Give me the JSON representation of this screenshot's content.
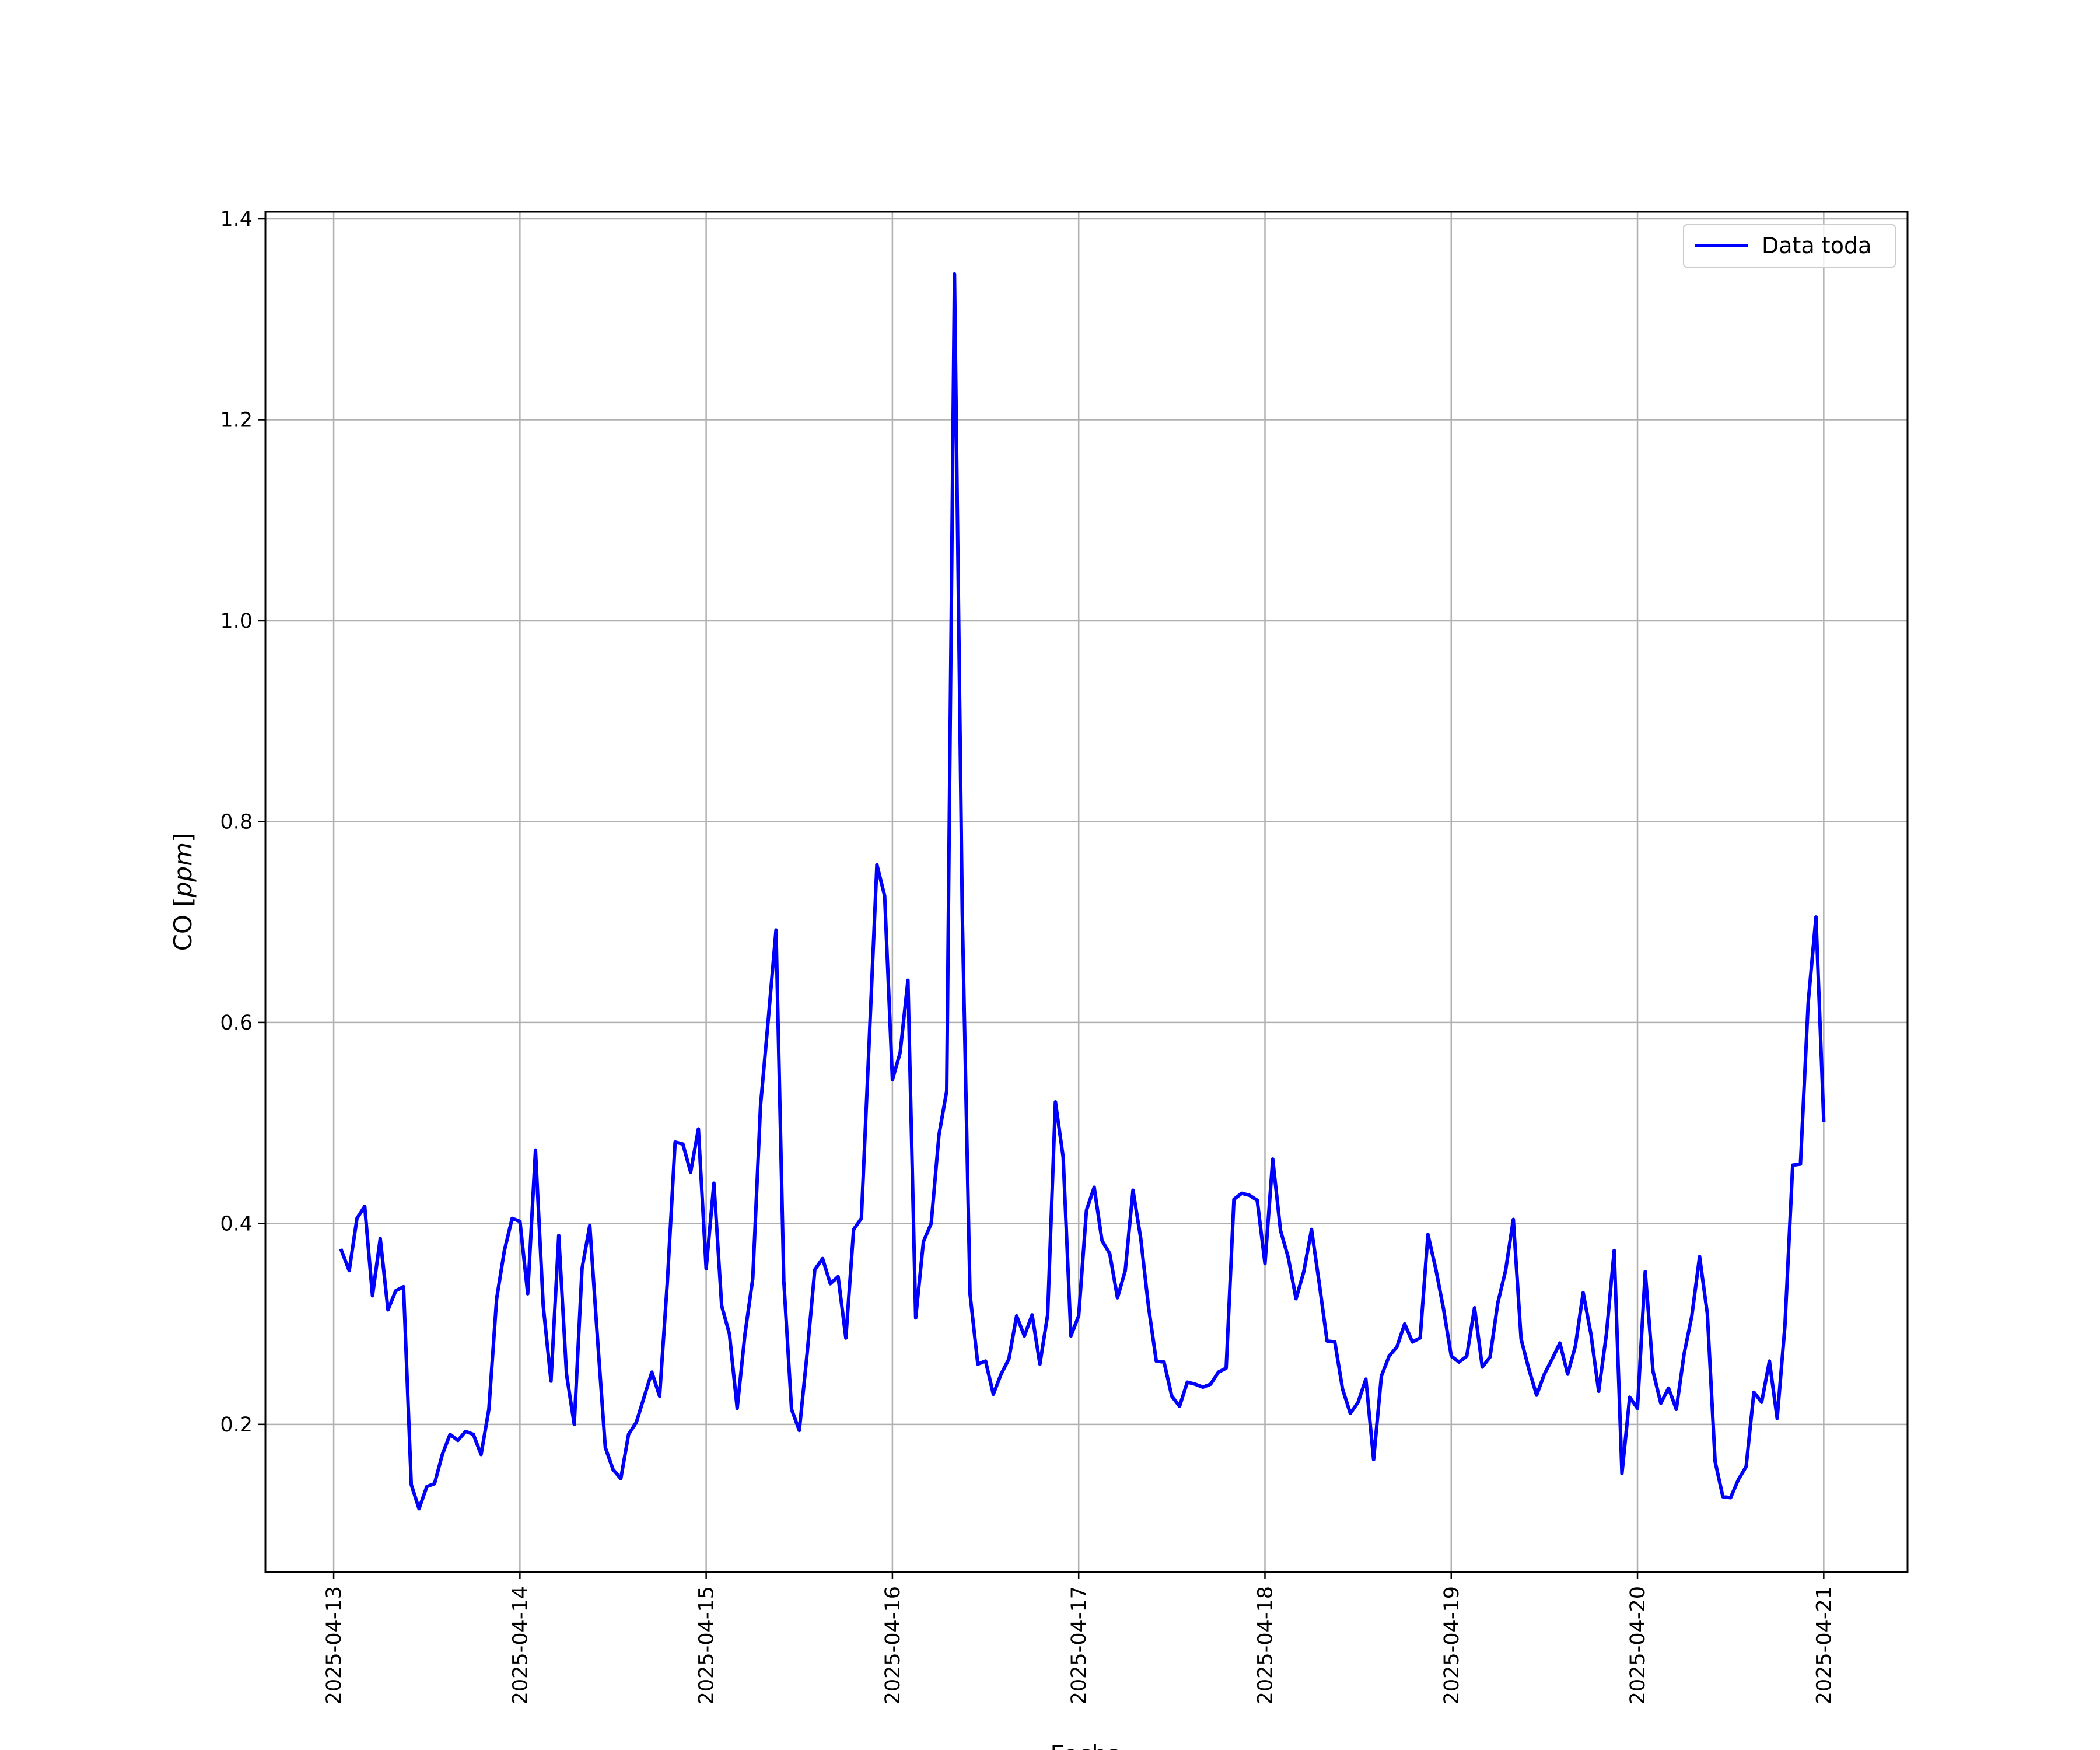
{
  "chart_data": {
    "type": "line",
    "title": "",
    "xlabel": "Fecha",
    "ylabel": "CO",
    "ylabel_unit": "ppm",
    "x_ticks": [
      "2025-04-13",
      "2025-04-14",
      "2025-04-15",
      "2025-04-16",
      "2025-04-17",
      "2025-04-18",
      "2025-04-19",
      "2025-04-20",
      "2025-04-21"
    ],
    "y_ticks": [
      "0.2",
      "0.4",
      "0.6",
      "0.8",
      "1.0",
      "1.2",
      "1.4"
    ],
    "xlim": [
      "2025-04-12T15:12",
      "2025-04-21T10:48"
    ],
    "ylim": [
      0.053,
      1.407
    ],
    "grid": true,
    "legend_position": "top-right",
    "line_color": "#0000ff",
    "series": [
      {
        "name": "Data toda",
        "color": "#0000ff",
        "x": [
          "2025-04-13T01:00",
          "2025-04-13T02:00",
          "2025-04-13T03:00",
          "2025-04-13T04:00",
          "2025-04-13T05:00",
          "2025-04-13T06:00",
          "2025-04-13T07:00",
          "2025-04-13T08:00",
          "2025-04-13T09:00",
          "2025-04-13T10:00",
          "2025-04-13T11:00",
          "2025-04-13T12:00",
          "2025-04-13T13:00",
          "2025-04-13T14:00",
          "2025-04-13T15:00",
          "2025-04-13T16:00",
          "2025-04-13T17:00",
          "2025-04-13T18:00",
          "2025-04-13T19:00",
          "2025-04-13T20:00",
          "2025-04-13T21:00",
          "2025-04-13T22:00",
          "2025-04-13T23:00",
          "2025-04-14T00:00",
          "2025-04-14T01:00",
          "2025-04-14T02:00",
          "2025-04-14T03:00",
          "2025-04-14T04:00",
          "2025-04-14T05:00",
          "2025-04-14T06:00",
          "2025-04-14T07:00",
          "2025-04-14T08:00",
          "2025-04-14T09:00",
          "2025-04-14T10:00",
          "2025-04-14T11:00",
          "2025-04-14T12:00",
          "2025-04-14T13:00",
          "2025-04-14T14:00",
          "2025-04-14T15:00",
          "2025-04-14T16:00",
          "2025-04-14T17:00",
          "2025-04-14T18:00",
          "2025-04-14T19:00",
          "2025-04-14T20:00",
          "2025-04-14T21:00",
          "2025-04-14T22:00",
          "2025-04-14T23:00",
          "2025-04-15T00:00",
          "2025-04-15T01:00",
          "2025-04-15T02:00",
          "2025-04-15T03:00",
          "2025-04-15T04:00",
          "2025-04-15T05:00",
          "2025-04-15T06:00",
          "2025-04-15T07:00",
          "2025-04-15T08:00",
          "2025-04-15T09:00",
          "2025-04-15T10:00",
          "2025-04-15T11:00",
          "2025-04-15T12:00",
          "2025-04-15T13:00",
          "2025-04-15T14:00",
          "2025-04-15T15:00",
          "2025-04-15T16:00",
          "2025-04-15T17:00",
          "2025-04-15T18:00",
          "2025-04-15T19:00",
          "2025-04-15T20:00",
          "2025-04-15T21:00",
          "2025-04-15T22:00",
          "2025-04-15T23:00",
          "2025-04-16T00:00",
          "2025-04-16T01:00",
          "2025-04-16T02:00",
          "2025-04-16T03:00",
          "2025-04-16T04:00",
          "2025-04-16T05:00",
          "2025-04-16T06:00",
          "2025-04-16T07:00",
          "2025-04-16T08:00",
          "2025-04-16T09:00",
          "2025-04-16T10:00",
          "2025-04-16T11:00",
          "2025-04-16T12:00",
          "2025-04-16T13:00",
          "2025-04-16T14:00",
          "2025-04-16T15:00",
          "2025-04-16T16:00",
          "2025-04-16T17:00",
          "2025-04-16T18:00",
          "2025-04-16T19:00",
          "2025-04-16T20:00",
          "2025-04-16T21:00",
          "2025-04-16T22:00",
          "2025-04-16T23:00",
          "2025-04-17T00:00",
          "2025-04-17T01:00",
          "2025-04-17T02:00",
          "2025-04-17T03:00",
          "2025-04-17T04:00",
          "2025-04-17T05:00",
          "2025-04-17T06:00",
          "2025-04-17T07:00",
          "2025-04-17T08:00",
          "2025-04-17T09:00",
          "2025-04-17T10:00",
          "2025-04-17T11:00",
          "2025-04-17T12:00",
          "2025-04-17T13:00",
          "2025-04-17T14:00",
          "2025-04-17T15:00",
          "2025-04-17T16:00",
          "2025-04-17T17:00",
          "2025-04-17T18:00",
          "2025-04-17T19:00",
          "2025-04-17T20:00",
          "2025-04-17T21:00",
          "2025-04-17T22:00",
          "2025-04-17T23:00",
          "2025-04-18T00:00",
          "2025-04-18T01:00",
          "2025-04-18T02:00",
          "2025-04-18T03:00",
          "2025-04-18T04:00",
          "2025-04-18T05:00",
          "2025-04-18T06:00",
          "2025-04-18T07:00",
          "2025-04-18T08:00",
          "2025-04-18T09:00",
          "2025-04-18T10:00",
          "2025-04-18T11:00",
          "2025-04-18T12:00",
          "2025-04-18T13:00",
          "2025-04-18T14:00",
          "2025-04-18T15:00",
          "2025-04-18T16:00",
          "2025-04-18T17:00",
          "2025-04-18T18:00",
          "2025-04-18T19:00",
          "2025-04-18T20:00",
          "2025-04-18T21:00",
          "2025-04-18T22:00",
          "2025-04-18T23:00",
          "2025-04-19T00:00",
          "2025-04-19T01:00",
          "2025-04-19T02:00",
          "2025-04-19T03:00",
          "2025-04-19T04:00",
          "2025-04-19T05:00",
          "2025-04-19T06:00",
          "2025-04-19T07:00",
          "2025-04-19T08:00",
          "2025-04-19T09:00",
          "2025-04-19T10:00",
          "2025-04-19T11:00",
          "2025-04-19T12:00",
          "2025-04-19T13:00",
          "2025-04-19T14:00",
          "2025-04-19T15:00",
          "2025-04-19T16:00",
          "2025-04-19T17:00",
          "2025-04-19T18:00",
          "2025-04-19T19:00",
          "2025-04-19T20:00",
          "2025-04-19T21:00",
          "2025-04-19T22:00",
          "2025-04-19T23:00",
          "2025-04-20T00:00",
          "2025-04-20T01:00",
          "2025-04-20T02:00",
          "2025-04-20T03:00",
          "2025-04-20T04:00",
          "2025-04-20T05:00",
          "2025-04-20T06:00",
          "2025-04-20T07:00",
          "2025-04-20T08:00",
          "2025-04-20T09:00",
          "2025-04-20T10:00",
          "2025-04-20T11:00",
          "2025-04-20T12:00",
          "2025-04-20T13:00",
          "2025-04-20T14:00",
          "2025-04-20T15:00",
          "2025-04-20T16:00",
          "2025-04-20T17:00",
          "2025-04-20T18:00",
          "2025-04-20T19:00",
          "2025-04-20T20:00",
          "2025-04-20T21:00",
          "2025-04-20T22:00",
          "2025-04-20T23:00",
          "2025-04-21T00:00"
        ],
        "y": [
          0.373,
          0.353,
          0.405,
          0.417,
          0.328,
          0.385,
          0.314,
          0.333,
          0.337,
          0.14,
          0.116,
          0.138,
          0.141,
          0.17,
          0.19,
          0.184,
          0.193,
          0.19,
          0.17,
          0.215,
          0.325,
          0.373,
          0.405,
          0.402,
          0.33,
          0.473,
          0.318,
          0.243,
          0.388,
          0.25,
          0.2,
          0.355,
          0.398,
          0.285,
          0.177,
          0.155,
          0.146,
          0.19,
          0.202,
          0.227,
          0.252,
          0.228,
          0.342,
          0.481,
          0.479,
          0.451,
          0.494,
          0.355,
          0.44,
          0.318,
          0.29,
          0.216,
          0.29,
          0.345,
          0.517,
          0.603,
          0.692,
          0.343,
          0.215,
          0.194,
          0.27,
          0.354,
          0.365,
          0.34,
          0.347,
          0.286,
          0.394,
          0.405,
          0.58,
          0.757,
          0.726,
          0.543,
          0.57,
          0.642,
          0.306,
          0.382,
          0.4,
          0.488,
          0.532,
          1.345,
          0.71,
          0.33,
          0.26,
          0.263,
          0.23,
          0.25,
          0.265,
          0.308,
          0.288,
          0.309,
          0.26,
          0.309,
          0.521,
          0.466,
          0.288,
          0.308,
          0.413,
          0.436,
          0.383,
          0.37,
          0.326,
          0.353,
          0.433,
          0.385,
          0.317,
          0.263,
          0.262,
          0.228,
          0.218,
          0.242,
          0.24,
          0.237,
          0.24,
          0.252,
          0.256,
          0.424,
          0.43,
          0.428,
          0.423,
          0.36,
          0.464,
          0.393,
          0.366,
          0.325,
          0.352,
          0.394,
          0.34,
          0.283,
          0.282,
          0.235,
          0.211,
          0.222,
          0.245,
          0.165,
          0.248,
          0.268,
          0.277,
          0.3,
          0.282,
          0.286,
          0.389,
          0.355,
          0.315,
          0.268,
          0.262,
          0.268,
          0.316,
          0.257,
          0.267,
          0.321,
          0.353,
          0.404,
          0.285,
          0.255,
          0.229,
          0.25,
          0.265,
          0.281,
          0.25,
          0.278,
          0.331,
          0.29,
          0.233,
          0.29,
          0.373,
          0.151,
          0.227,
          0.216,
          0.352,
          0.253,
          0.221,
          0.236,
          0.215,
          0.27,
          0.308,
          0.367,
          0.31,
          0.163,
          0.128,
          0.127,
          0.145,
          0.158,
          0.232,
          0.222,
          0.263,
          0.206,
          0.298,
          0.458,
          0.459,
          0.62,
          0.705,
          0.503
        ]
      }
    ]
  }
}
